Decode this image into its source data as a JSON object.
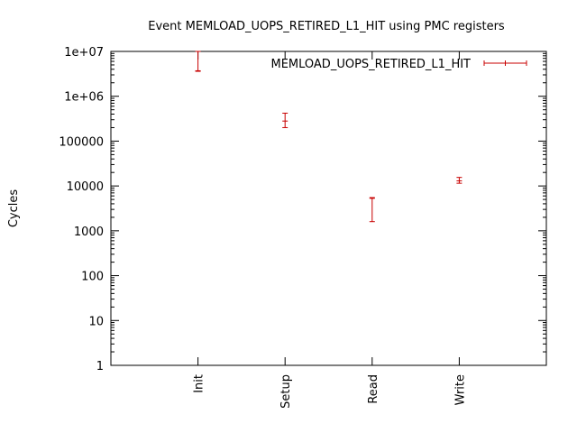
{
  "chart_data": {
    "type": "scatter",
    "title": "Event MEMLOAD_UOPS_RETIRED_L1_HIT using PMC registers",
    "xlabel": "",
    "ylabel": "Cycles",
    "yscale": "log",
    "ylim": [
      1,
      10000000
    ],
    "y_ticks": [
      "1",
      "10",
      "100",
      "1000",
      "10000",
      "100000",
      "1e+06",
      "1e+07"
    ],
    "categories": [
      "Init",
      "Setup",
      "Read",
      "Write"
    ],
    "legend_position": "top-right",
    "grid": false,
    "series": [
      {
        "name": "MEMLOAD_UOPS_RETIRED_L1_HIT",
        "color": "#c80000",
        "style": "yerrorbars",
        "points": [
          {
            "category": "Init",
            "y": 3700000,
            "ylow": 3600000,
            "yhigh": 10000000
          },
          {
            "category": "Setup",
            "y": 280000,
            "ylow": 200000,
            "yhigh": 420000
          },
          {
            "category": "Read",
            "y": 5300,
            "ylow": 1600,
            "yhigh": 5500
          },
          {
            "category": "Write",
            "y": 13000,
            "ylow": 11500,
            "yhigh": 15500
          }
        ]
      }
    ]
  }
}
